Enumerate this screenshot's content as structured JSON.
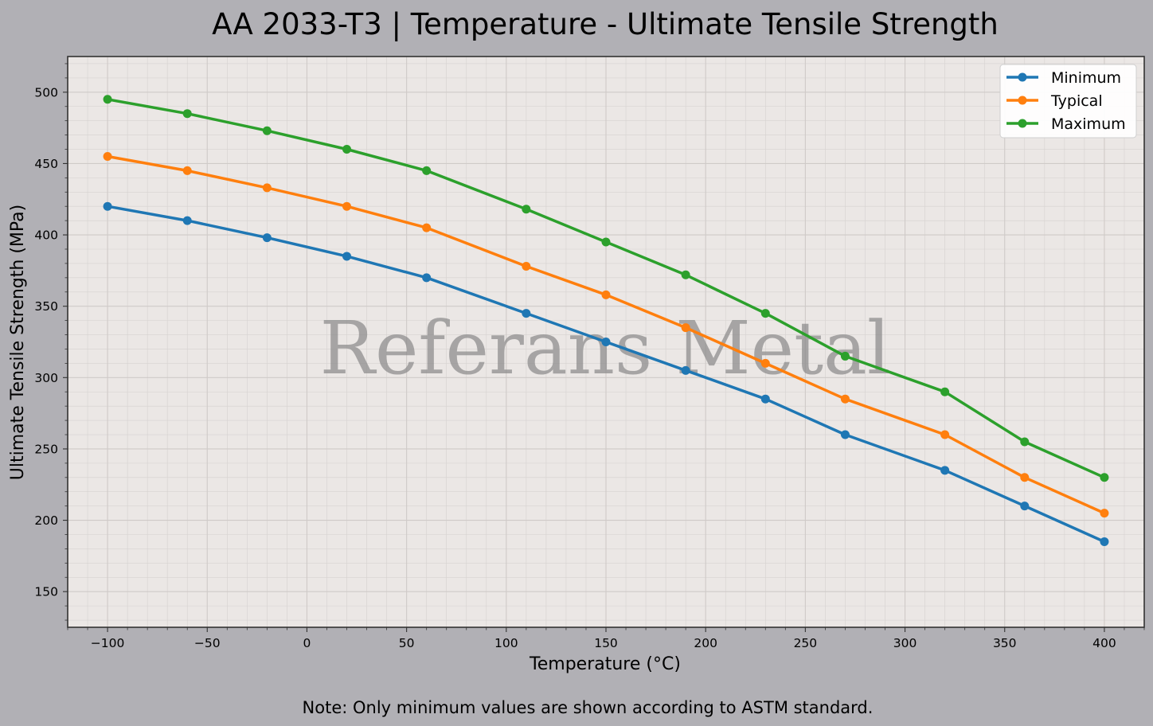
{
  "chart_data": {
    "type": "line",
    "title": "AA 2033-T3 | Temperature - Ultimate Tensile Strength",
    "xlabel": "Temperature (°C)",
    "ylabel": "Ultimate Tensile Strength (MPa)",
    "xlim": [
      -120,
      420
    ],
    "ylim": [
      125,
      525
    ],
    "x_ticks": [
      -100,
      -50,
      0,
      50,
      100,
      150,
      200,
      250,
      300,
      350,
      400
    ],
    "x_tick_labels": [
      "−100",
      "−50",
      "0",
      "50",
      "100",
      "150",
      "200",
      "250",
      "300",
      "350",
      "400"
    ],
    "y_ticks": [
      150,
      200,
      250,
      300,
      350,
      400,
      450,
      500
    ],
    "y_tick_labels": [
      "150",
      "200",
      "250",
      "300",
      "350",
      "400",
      "450",
      "500"
    ],
    "grid": true,
    "legend_position": "top-right",
    "x": [
      -100,
      -60,
      -20,
      20,
      60,
      110,
      150,
      190,
      230,
      270,
      320,
      360,
      400
    ],
    "series": [
      {
        "name": "Minimum",
        "color": "#1f77b4",
        "values": [
          420,
          410,
          398,
          385,
          370,
          345,
          325,
          305,
          285,
          260,
          235,
          210,
          185
        ]
      },
      {
        "name": "Typical",
        "color": "#ff7f0e",
        "values": [
          455,
          445,
          433,
          420,
          405,
          378,
          358,
          335,
          310,
          285,
          260,
          230,
          205
        ]
      },
      {
        "name": "Maximum",
        "color": "#2ca02c",
        "values": [
          495,
          485,
          473,
          460,
          445,
          418,
          395,
          372,
          345,
          315,
          290,
          255,
          230
        ]
      }
    ],
    "watermark": "Referans Metal",
    "note": "Note: Only minimum values are shown according to ASTM standard."
  },
  "colors": {
    "figure_background": "#b1b0b5",
    "plot_background": "#ebe7e5"
  }
}
